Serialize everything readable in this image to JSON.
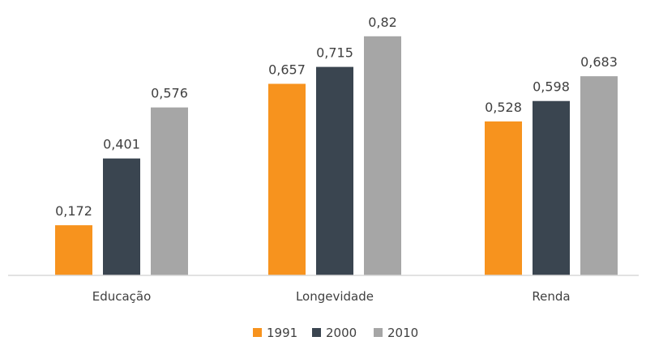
{
  "chart_data": {
    "type": "bar",
    "categories": [
      "Educação",
      "Longevidade",
      "Renda"
    ],
    "series": [
      {
        "name": "1991",
        "values": [
          0.172,
          0.657,
          0.528
        ],
        "labels": [
          "0,172",
          "0,657",
          "0,528"
        ],
        "color": "#F7931E"
      },
      {
        "name": "2000",
        "values": [
          0.401,
          0.715,
          0.598
        ],
        "labels": [
          "0,401",
          "0,715",
          "0,598"
        ],
        "color": "#3A4550"
      },
      {
        "name": "2010",
        "values": [
          0.576,
          0.82,
          0.683
        ],
        "labels": [
          "0,576",
          "0,82",
          "0,683"
        ],
        "color": "#A6A6A6"
      }
    ],
    "ylim": [
      0,
      1
    ],
    "grid": false,
    "legend": "bottom-center",
    "axis_color": "#D9D9D9"
  }
}
